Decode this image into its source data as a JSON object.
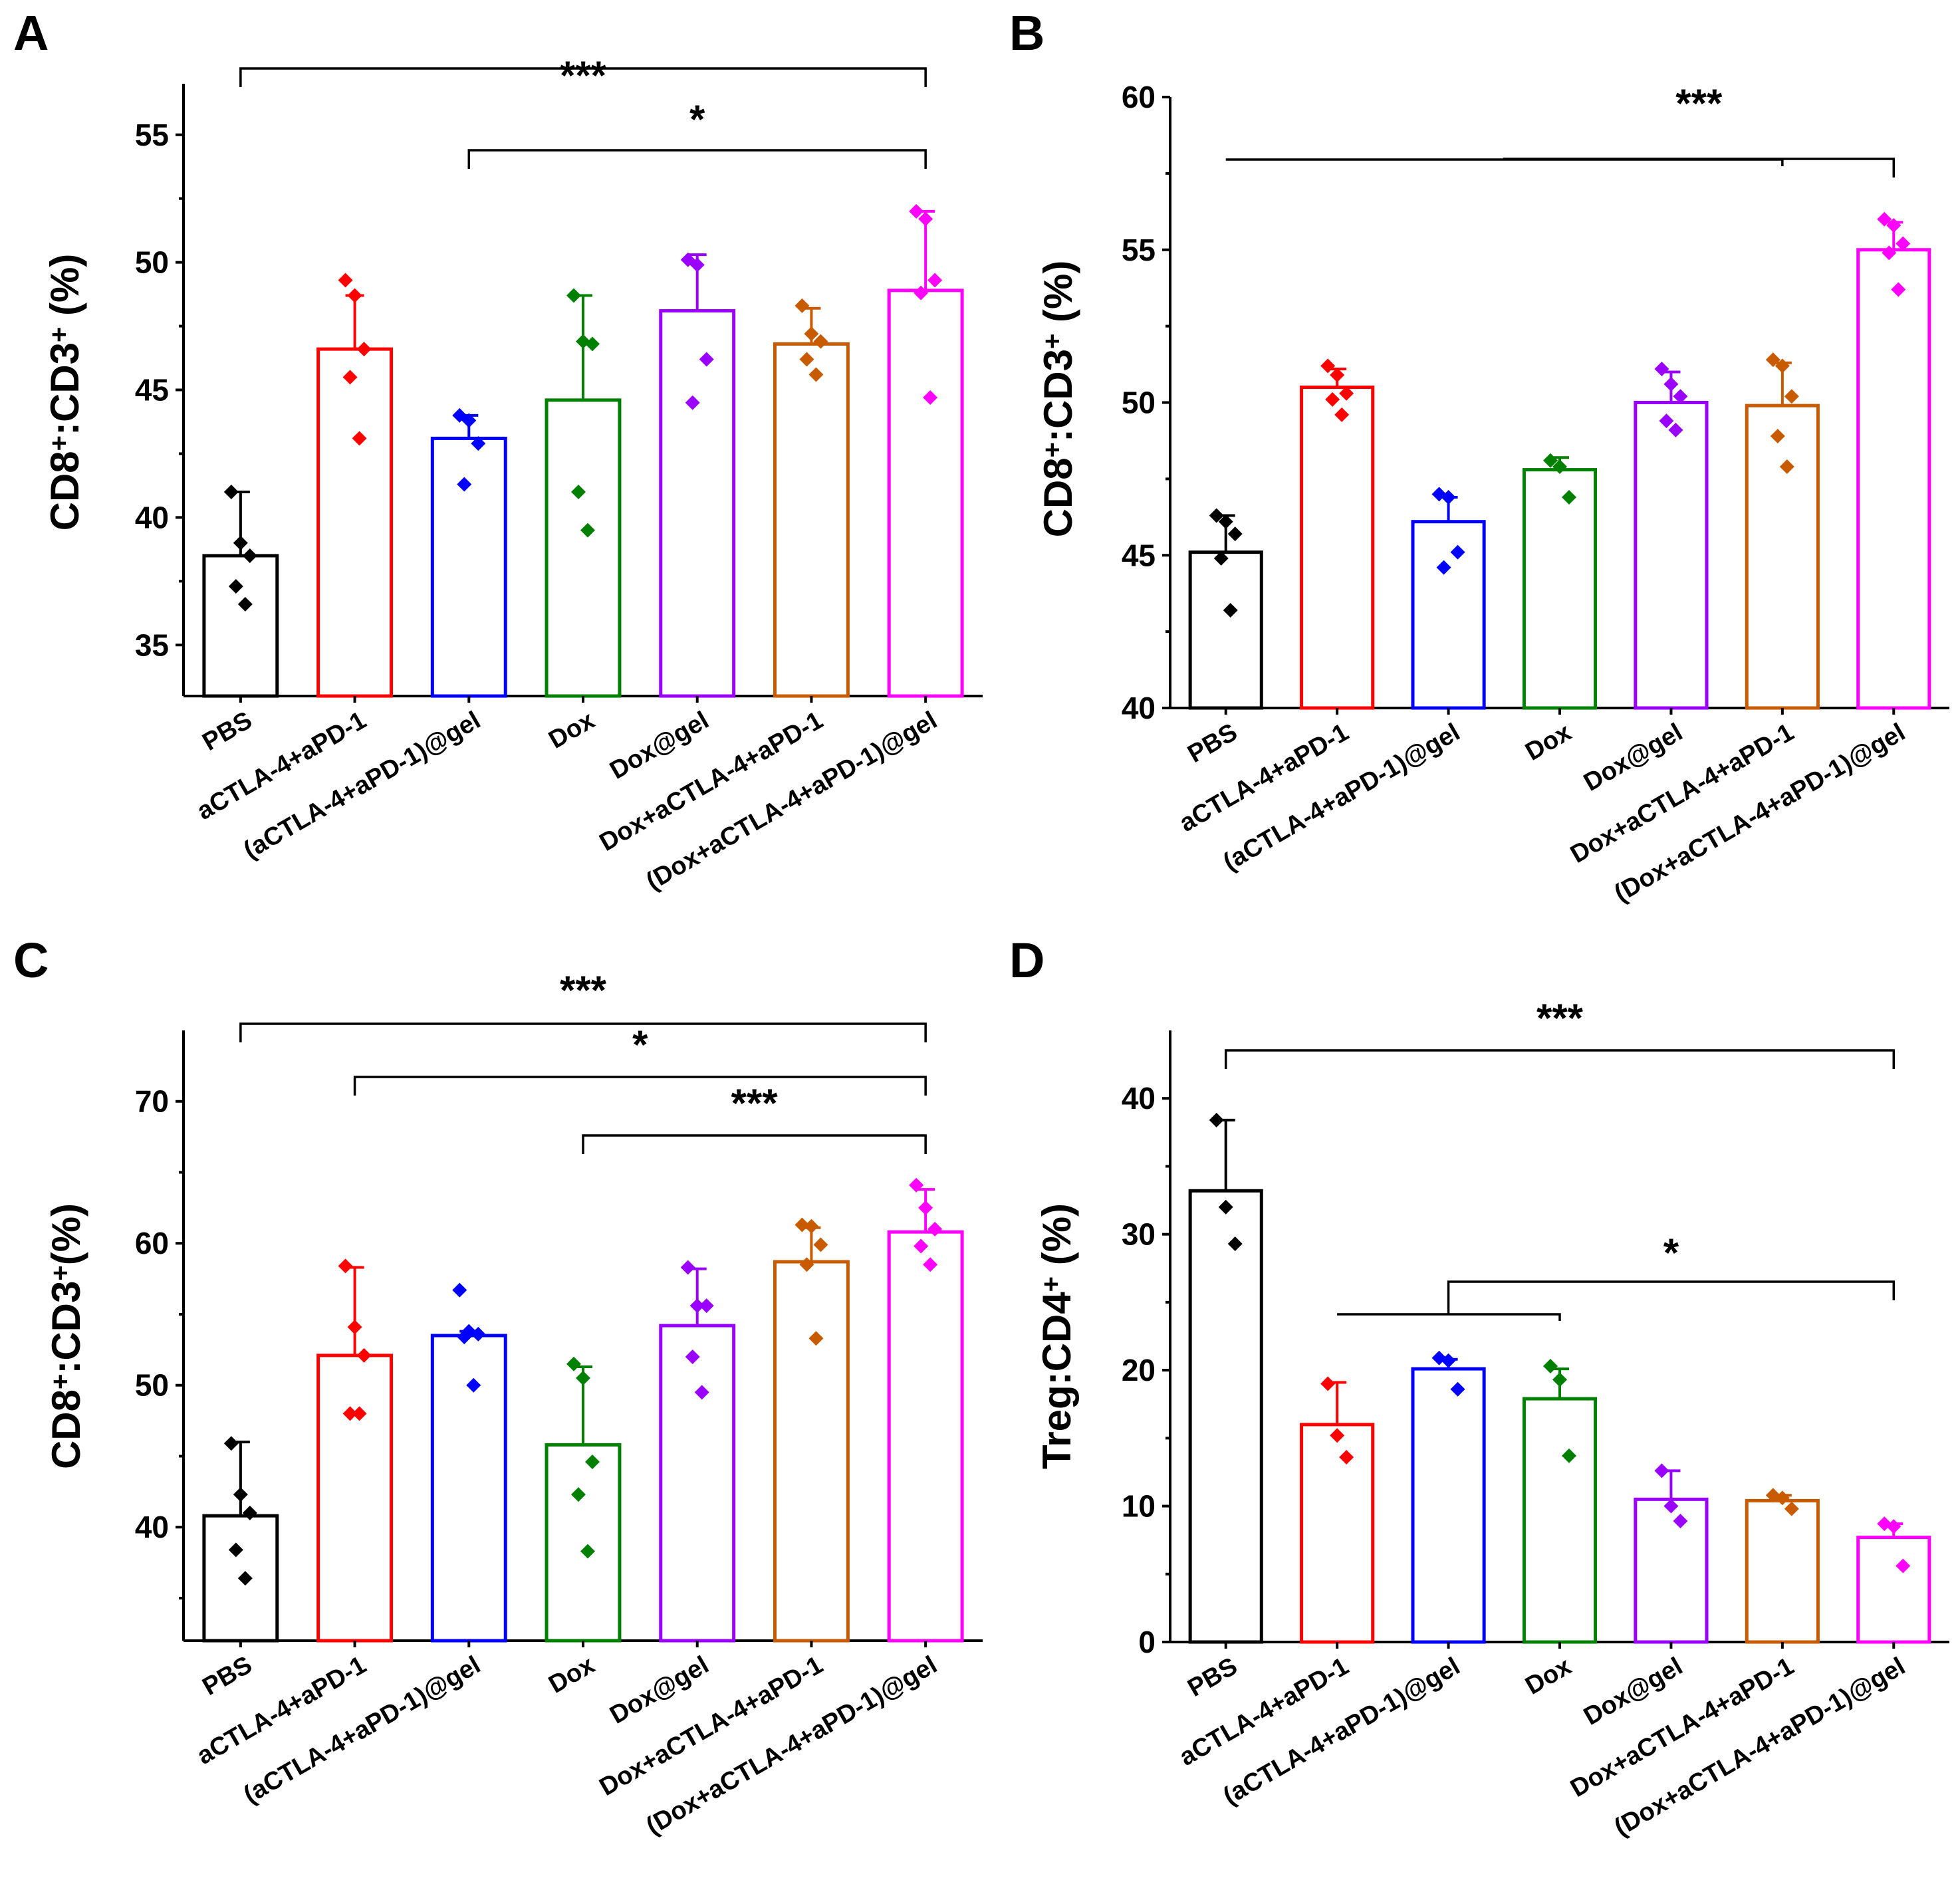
{
  "colors": [
    "#000000",
    "#ff0000",
    "#0000ff",
    "#008000",
    "#9900ff",
    "#c85a00",
    "#ff00ff"
  ],
  "chart_data": [
    {
      "panel": "A",
      "type": "bar",
      "categories": [
        "PBS",
        "aCTLA-4+aPD-1",
        "(aCTLA-4+aPD-1)@gel",
        "Dox",
        "Dox@gel",
        "Dox+aCTLA-4+aPD-1",
        "(Dox+aCTLA-4+aPD-1)@gel"
      ],
      "values": [
        38.5,
        46.6,
        43.1,
        44.6,
        48.1,
        46.8,
        48.9
      ],
      "errors": [
        2.5,
        2.1,
        0.9,
        4.1,
        2.2,
        1.4,
        3.1
      ],
      "points": [
        [
          41.0,
          39.0,
          38.5,
          37.3,
          36.6
        ],
        [
          49.3,
          48.7,
          46.6,
          45.5,
          43.1
        ],
        [
          44.0,
          43.8,
          42.9,
          41.3
        ],
        [
          48.7,
          46.9,
          46.8,
          41.0,
          39.5
        ],
        [
          50.1,
          49.9,
          46.2,
          44.5
        ],
        [
          48.3,
          47.2,
          46.9,
          46.2,
          45.6
        ],
        [
          52.0,
          51.7,
          49.3,
          48.8,
          44.7
        ]
      ],
      "ylabel_main": "CD8",
      "ylabel_sup1": "+",
      "ylabel_mid": ":CD3",
      "ylabel_sup2": "+",
      "ylabel_tail": " (%)",
      "ylim": [
        33,
        57
      ],
      "yticks": [
        35,
        40,
        45,
        50,
        55
      ],
      "tick_labels": [
        "35",
        "40",
        "45",
        "50",
        "55"
      ],
      "significance": [
        {
          "from": 0,
          "to": 6,
          "label": "***"
        },
        {
          "from": 2,
          "to": 6,
          "label": "*"
        }
      ]
    },
    {
      "panel": "B",
      "type": "bar",
      "categories": [
        "PBS",
        "aCTLA-4+aPD-1",
        "(aCTLA-4+aPD-1)@gel",
        "Dox",
        "Dox@gel",
        "Dox+aCTLA-4+aPD-1",
        "(Dox+aCTLA-4+aPD-1)@gel"
      ],
      "values": [
        45.1,
        50.5,
        46.1,
        47.8,
        50.0,
        49.9,
        55.0
      ],
      "errors": [
        1.2,
        0.6,
        0.8,
        0.4,
        1.0,
        1.4,
        0.9
      ],
      "points": [
        [
          46.3,
          46.1,
          45.7,
          44.9,
          43.2
        ],
        [
          51.2,
          50.9,
          50.3,
          50.1,
          49.6
        ],
        [
          47.0,
          46.9,
          45.1,
          44.6
        ],
        [
          48.1,
          47.9,
          46.9
        ],
        [
          51.1,
          50.6,
          50.2,
          49.4,
          49.1
        ],
        [
          51.4,
          51.2,
          50.2,
          48.9,
          47.9
        ],
        [
          56.0,
          55.8,
          55.2,
          54.9,
          53.7
        ]
      ],
      "ylabel_main": "CD8",
      "ylabel_sup1": "+",
      "ylabel_mid": ":CD3",
      "ylabel_sup2": "+",
      "ylabel_tail": " (%)",
      "ylim": [
        40,
        60
      ],
      "yticks": [
        40,
        45,
        50,
        55,
        60
      ],
      "tick_labels": [
        "40",
        "45",
        "50",
        "55",
        "60"
      ],
      "significance": [
        {
          "group_from": 0,
          "group_to": 5,
          "to": 6,
          "label": "***"
        }
      ]
    },
    {
      "panel": "C",
      "type": "bar",
      "categories": [
        "PBS",
        "aCTLA-4+aPD-1",
        "(aCTLA-4+aPD-1)@gel",
        "Dox",
        "Dox@gel",
        "Dox+aCTLA-4+aPD-1",
        "(Dox+aCTLA-4+aPD-1)@gel"
      ],
      "values": [
        40.8,
        52.1,
        53.5,
        45.8,
        54.2,
        58.7,
        60.8
      ],
      "errors": [
        5.2,
        6.2,
        0.3,
        5.5,
        4.0,
        2.4,
        3.0
      ],
      "points": [
        [
          45.9,
          42.3,
          41.0,
          38.4,
          36.4
        ],
        [
          58.4,
          54.1,
          52.1,
          48.0,
          48.0
        ],
        [
          56.7,
          53.8,
          53.6,
          53.4,
          50.0
        ],
        [
          51.5,
          50.5,
          44.6,
          42.3,
          38.3
        ],
        [
          58.3,
          55.6,
          55.6,
          52.0,
          49.5
        ],
        [
          61.3,
          61.2,
          59.9,
          58.5,
          53.3
        ],
        [
          64.1,
          62.5,
          61.0,
          59.8,
          58.5
        ]
      ],
      "ylabel_main": "CD8",
      "ylabel_sup1": "+",
      "ylabel_mid": ":CD3",
      "ylabel_sup2": "+",
      "ylabel_tail": "(%)",
      "ylim": [
        32,
        75
      ],
      "yticks": [
        40,
        50,
        60,
        70
      ],
      "tick_labels": [
        "40",
        "50",
        "60",
        "70"
      ],
      "significance": [
        {
          "from": 0,
          "to": 6,
          "label": "***"
        },
        {
          "from": 1,
          "to": 6,
          "label": "*"
        },
        {
          "from": 3,
          "to": 6,
          "label": "***"
        }
      ]
    },
    {
      "panel": "D",
      "type": "bar",
      "categories": [
        "PBS",
        "aCTLA-4+aPD-1",
        "(aCTLA-4+aPD-1)@gel",
        "Dox",
        "Dox@gel",
        "Dox+aCTLA-4+aPD-1",
        "(Dox+aCTLA-4+aPD-1)@gel"
      ],
      "values": [
        33.2,
        16.0,
        20.1,
        17.9,
        10.5,
        10.4,
        7.7
      ],
      "errors": [
        5.2,
        3.1,
        0.7,
        2.2,
        2.1,
        0.4,
        1.0
      ],
      "points": [
        [
          38.4,
          32.0,
          29.3
        ],
        [
          19.0,
          15.2,
          13.6
        ],
        [
          20.9,
          20.7,
          18.6
        ],
        [
          20.3,
          19.3,
          13.7
        ],
        [
          12.6,
          10.0,
          8.9
        ],
        [
          10.8,
          10.6,
          9.8
        ],
        [
          8.7,
          8.5,
          5.6
        ]
      ],
      "ylabel_main": "Treg:CD4",
      "ylabel_sup1": "+",
      "ylabel_mid": "",
      "ylabel_sup2": "",
      "ylabel_tail": " (%)",
      "ylim": [
        0,
        45
      ],
      "yticks": [
        0,
        10,
        20,
        30,
        40
      ],
      "tick_labels": [
        "0",
        "10",
        "20",
        "30",
        "40"
      ],
      "significance": [
        {
          "from": 0,
          "to": 6,
          "label": "***"
        },
        {
          "group_from": 1,
          "group_to": 3,
          "to": 6,
          "label": "*"
        }
      ]
    }
  ]
}
